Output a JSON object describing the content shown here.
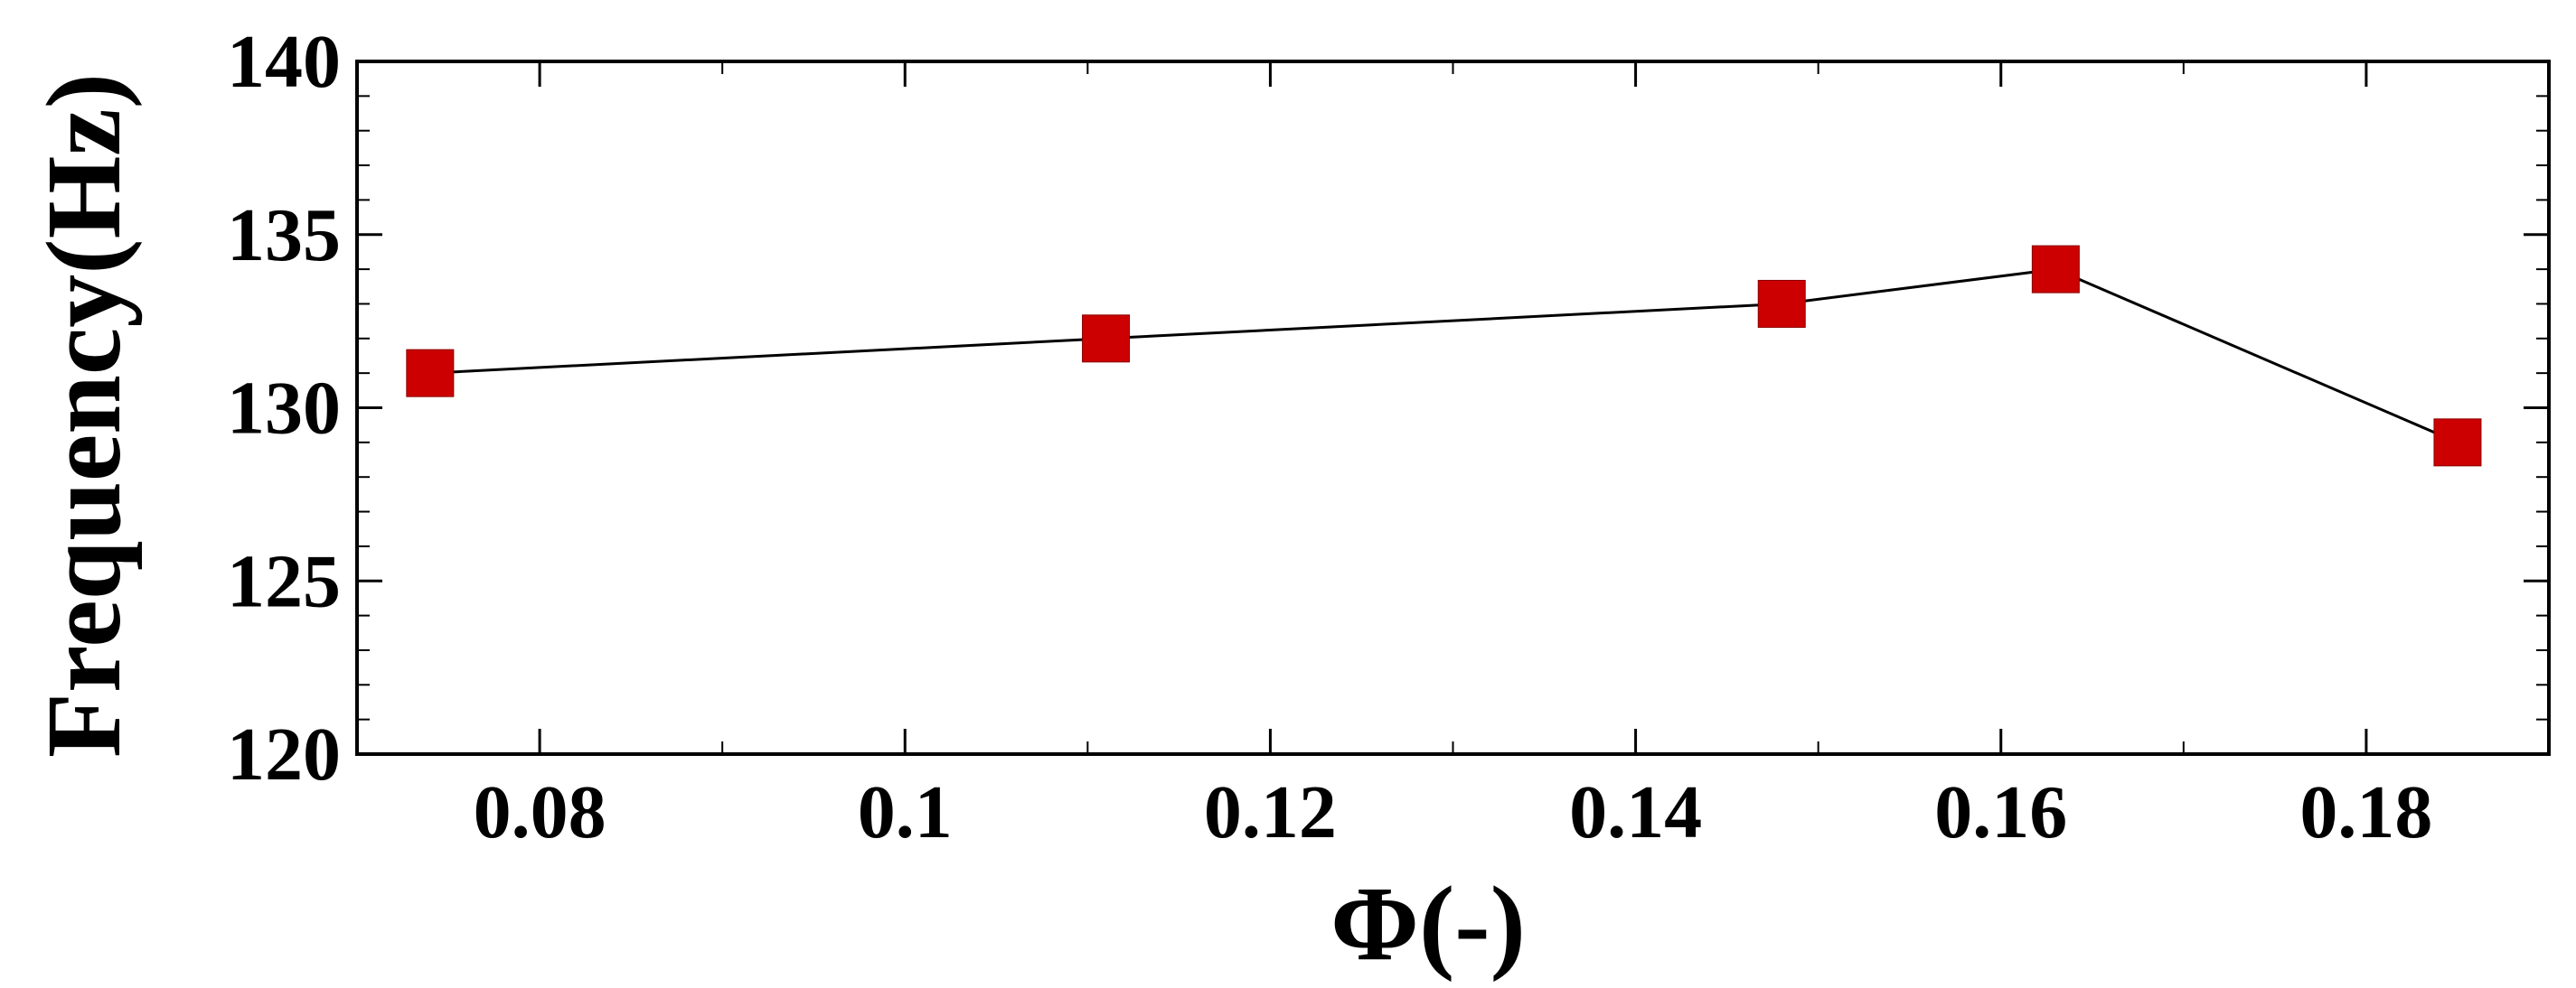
{
  "chart_data": {
    "type": "line",
    "title": "",
    "xlabel": "Φ(-)",
    "ylabel": "Frequency(Hz)",
    "xlim": [
      0.07,
      0.19
    ],
    "ylim": [
      120,
      140
    ],
    "x_ticks": [
      0.08,
      0.1,
      0.12,
      0.14,
      0.16,
      0.18
    ],
    "x_tick_labels": [
      "0.08",
      "0.1",
      "0.12",
      "0.14",
      "0.16",
      "0.18"
    ],
    "y_ticks": [
      120,
      125,
      130,
      135,
      140
    ],
    "y_tick_labels": [
      "120",
      "125",
      "130",
      "135",
      "140"
    ],
    "grid": false,
    "legend": "none",
    "series": [
      {
        "x": [
          0.074,
          0.111,
          0.148,
          0.163,
          0.185
        ],
        "y": [
          131,
          132,
          133,
          134,
          129
        ],
        "marker": "square",
        "marker_color": "#cc0000",
        "line_color": "#000000"
      }
    ]
  }
}
